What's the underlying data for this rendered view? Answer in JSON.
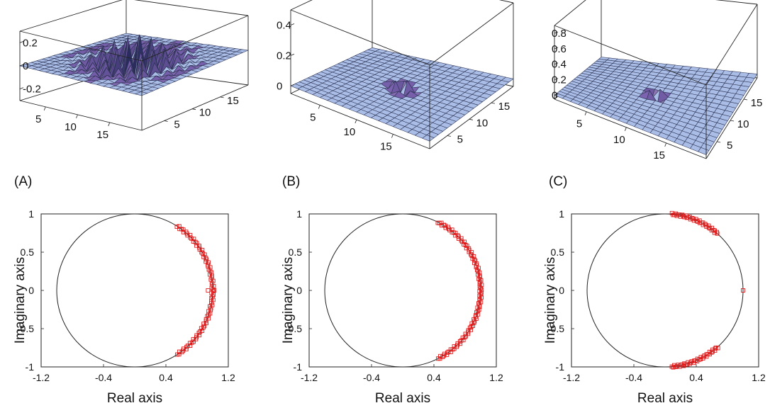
{
  "colors": {
    "surface": "#a9bde6",
    "surface_dark": "#8ea4d4",
    "grid": "#2a3050",
    "peak_dark": "#2a2c60",
    "peak_mid": "#7c63b0",
    "peak_light": "#e8e6b8",
    "marker": "#e01a1a",
    "circle": "#222222",
    "frame": "#222222"
  },
  "chart_data": [
    {
      "type": "surface3d",
      "panel_label": "(A)",
      "z_ticks": [
        "0.2",
        "0",
        "-0.2"
      ],
      "z_tick_values": [
        0.2,
        0,
        -0.2
      ],
      "zlim": [
        -0.3,
        0.3
      ],
      "x_ticks": [
        "5",
        "10",
        "15"
      ],
      "y_ticks": [
        "5",
        "10",
        "15"
      ],
      "grid_size": 20,
      "peak": {
        "shape": "oscillating-packet",
        "amplitude": 0.25,
        "width": 3.2
      }
    },
    {
      "type": "surface3d",
      "panel_label": "(B)",
      "z_ticks": [
        "0.4",
        "0.2",
        "0"
      ],
      "z_tick_values": [
        0.4,
        0.2,
        0
      ],
      "zlim": [
        -0.05,
        0.5
      ],
      "x_ticks": [
        "5",
        "10",
        "15"
      ],
      "y_ticks": [
        "5",
        "10",
        "15"
      ],
      "grid_size": 20,
      "peak": {
        "shape": "single-spike",
        "amplitude": 0.45,
        "width": 1.3
      }
    },
    {
      "type": "surface3d",
      "panel_label": "(C)",
      "z_ticks": [
        "0.8",
        "0.6",
        "0.4",
        "0.2",
        "0"
      ],
      "z_tick_values": [
        0.8,
        0.6,
        0.4,
        0.2,
        0
      ],
      "zlim": [
        -0.05,
        0.9
      ],
      "x_ticks": [
        "5",
        "10",
        "15"
      ],
      "y_ticks": [
        "5",
        "10",
        "15"
      ],
      "grid_size": 20,
      "peak": {
        "shape": "single-spike",
        "amplitude": 0.85,
        "width": 0.9
      }
    },
    {
      "type": "scatter",
      "xlabel": "Real axis",
      "ylabel": "Imaginary axis",
      "xlim": [
        -1.2,
        1.2
      ],
      "ylim": [
        -1,
        1
      ],
      "x_ticks": [
        "-1.2",
        "-0.4",
        "0.4",
        "1.2"
      ],
      "x_tick_values": [
        -1.2,
        -0.4,
        0.4,
        1.2
      ],
      "y_ticks": [
        "1",
        "0.5",
        "0",
        "-0.5",
        "-1"
      ],
      "y_tick_values": [
        1,
        0.5,
        0,
        -0.5,
        -1
      ],
      "unit_circle": true,
      "arc": {
        "from_deg": -57,
        "to_deg": 57,
        "count": 90,
        "radius": 1.0
      },
      "extra_points": [
        [
          0.94,
          0.0
        ],
        [
          1.02,
          0.0
        ]
      ],
      "marker": "open-square"
    },
    {
      "type": "scatter",
      "xlabel": "Real axis",
      "ylabel": "Imaginary axis",
      "xlim": [
        -1.2,
        1.2
      ],
      "ylim": [
        -1,
        1
      ],
      "x_ticks": [
        "-1.2",
        "-0.4",
        "0.4",
        "1.2"
      ],
      "x_tick_values": [
        -1.2,
        -0.4,
        0.4,
        1.2
      ],
      "y_ticks": [
        "1",
        "0.5",
        "0",
        "-0.5",
        "-1"
      ],
      "y_tick_values": [
        1,
        0.5,
        0,
        -0.5,
        -1
      ],
      "unit_circle": true,
      "arc": {
        "from_deg": -63,
        "to_deg": 63,
        "count": 110,
        "radius": 1.0
      },
      "extra_points": [],
      "marker": "open-square"
    },
    {
      "type": "scatter",
      "xlabel": "Real axis",
      "ylabel": "Imaginary axis",
      "xlim": [
        -1.2,
        1.2
      ],
      "ylim": [
        -1,
        1
      ],
      "x_ticks": [
        "-1.2",
        "-0.4",
        "0.4",
        "1.2"
      ],
      "x_tick_values": [
        -1.2,
        -0.4,
        0.4,
        1.2
      ],
      "y_ticks": [
        "1",
        "0.5",
        "0",
        "-0.5",
        "-1"
      ],
      "y_tick_values": [
        1,
        0.5,
        0,
        -0.5,
        -1
      ],
      "unit_circle": true,
      "arc_segments": [
        {
          "from_deg": 48,
          "to_deg": 85,
          "count": 40,
          "radius": 1.0
        },
        {
          "from_deg": -85,
          "to_deg": -48,
          "count": 40,
          "radius": 1.0
        }
      ],
      "extra_points": [
        [
          1.0,
          0.0
        ]
      ],
      "marker": "open-square"
    }
  ]
}
